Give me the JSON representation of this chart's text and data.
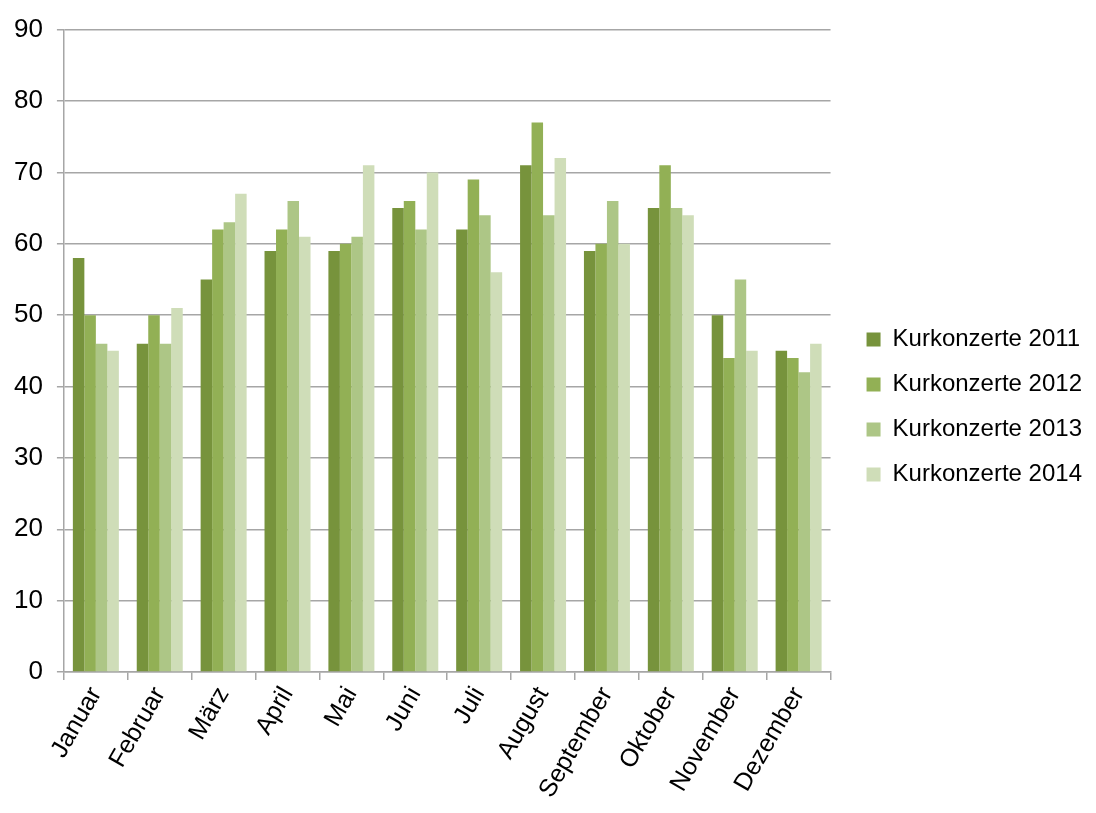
{
  "chart_data": {
    "type": "bar",
    "categories": [
      "Januar",
      "Februar",
      "März",
      "April",
      "Mai",
      "Juni",
      "Juli",
      "August",
      "September",
      "Oktober",
      "November",
      "Dezember"
    ],
    "series": [
      {
        "name": "Kurkonzerte 2011",
        "color": "#77933c",
        "values": [
          58,
          46,
          55,
          59,
          59,
          65,
          62,
          71,
          59,
          65,
          50,
          45
        ]
      },
      {
        "name": "Kurkonzerte 2012",
        "color": "#92b055",
        "values": [
          50,
          50,
          62,
          62,
          60,
          66,
          69,
          77,
          60,
          71,
          44,
          44
        ]
      },
      {
        "name": "Kurkonzerte 2013",
        "color": "#adc686",
        "values": [
          46,
          46,
          63,
          66,
          61,
          62,
          64,
          64,
          66,
          65,
          55,
          42
        ]
      },
      {
        "name": "Kurkonzerte 2014",
        "color": "#cfddb8",
        "values": [
          45,
          51,
          67,
          61,
          71,
          70,
          56,
          72,
          60,
          64,
          45,
          46
        ]
      }
    ],
    "ylim": [
      0,
      90
    ],
    "yticks": [
      0,
      10,
      20,
      30,
      40,
      50,
      60,
      70,
      80,
      90
    ],
    "grid": "y",
    "legend": "right"
  }
}
